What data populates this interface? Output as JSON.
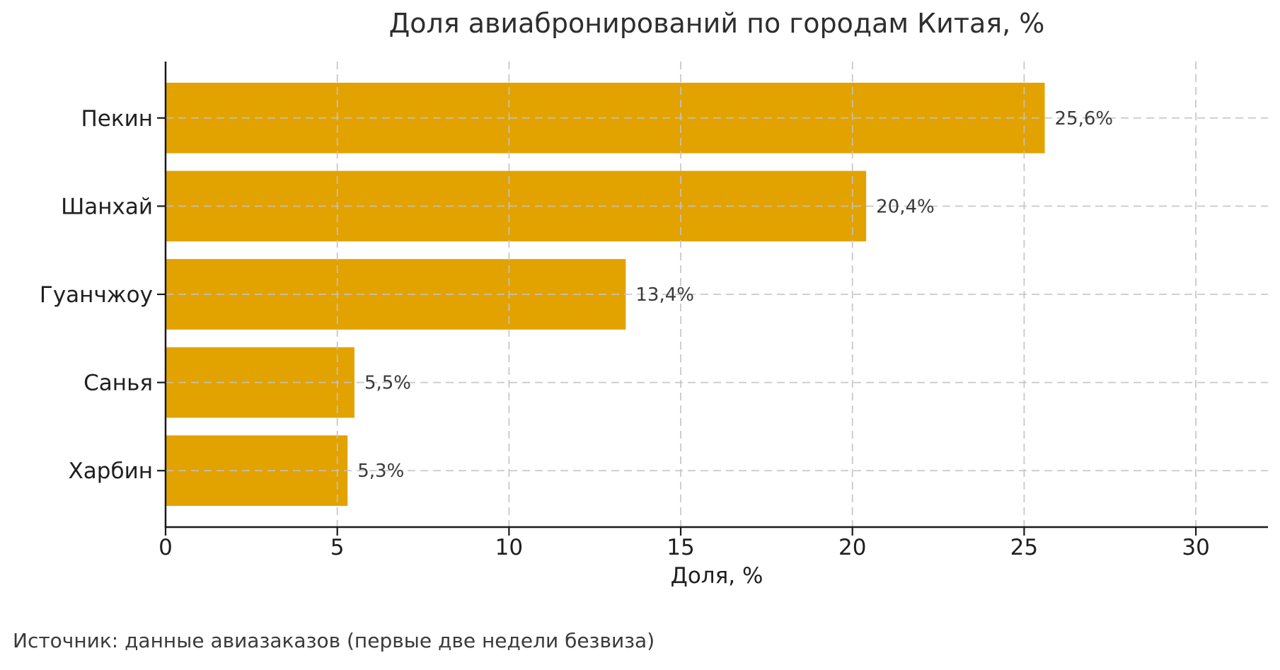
{
  "page": {
    "background": "#ffffff"
  },
  "chart_data": {
    "type": "bar",
    "orientation": "horizontal",
    "title": "Доля авиабронирований по городам Китая, %",
    "categories": [
      "Пекин",
      "Шанхай",
      "Гуанчжоу",
      "Санья",
      "Харбин"
    ],
    "values": [
      25.6,
      20.4,
      13.4,
      5.5,
      5.3
    ],
    "value_labels": [
      "25,6%",
      "20,4%",
      "13,4%",
      "5,5%",
      "5,3%"
    ],
    "xlabel": "Доля, %",
    "xticks": [
      0,
      5,
      10,
      15,
      20,
      25,
      30
    ],
    "xtick_labels": [
      "0",
      "5",
      "10",
      "15",
      "20",
      "25",
      "30"
    ],
    "xlim": [
      0,
      32.1
    ],
    "ylim_pad_units": 0.64,
    "bar_height_fraction": 0.8,
    "grid": "dashed x+y gridlines, drawn above bars",
    "legend_position": "none",
    "bar_color": "#E2A200",
    "grid_color": "#c3c3c3",
    "axis_color": "#1a1a1a",
    "tick_label_color": "#1f1f1f",
    "value_label_color": "#3a3a3a"
  },
  "source_note": "Источник: данные авиазаказов (первые две недели безвиза)"
}
